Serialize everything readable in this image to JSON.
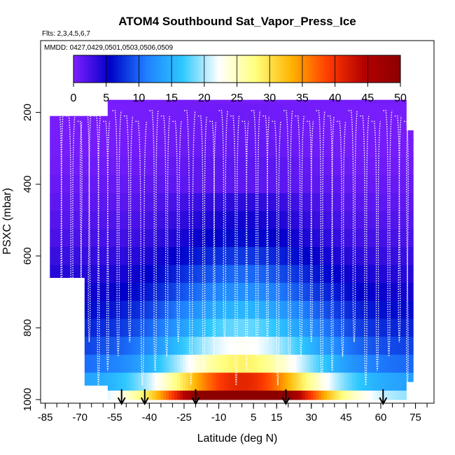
{
  "chart_data": {
    "type": "heatmap",
    "title": "ATOM4 Southbound Sat_Vapor_Press_Ice",
    "subtitle_flights": "Flts: 2,3,4,5,6,7",
    "subtitle_dates": "MMDD: 0427,0429,0501,0503,0506,0509",
    "xlabel": "Latitude (deg N)",
    "ylabel": "PSXC (mbar)",
    "xlim": [
      -87,
      83
    ],
    "ylim": [
      1010,
      0
    ],
    "x_ticks": [
      -85,
      -70,
      -55,
      -40,
      -25,
      -10,
      5,
      15,
      30,
      45,
      60,
      75
    ],
    "x_tick_labels": [
      "-85",
      "-70",
      "-55",
      "-40",
      "-25",
      "-10",
      "5",
      "15",
      "30",
      "45",
      "60",
      "75"
    ],
    "y_ticks": [
      200,
      400,
      600,
      800,
      1000
    ],
    "y_tick_labels": [
      "200",
      "400",
      "600",
      "800",
      "1000"
    ],
    "colorbar": {
      "min": 0,
      "max": 50,
      "ticks": [
        0,
        5,
        10,
        15,
        20,
        25,
        30,
        35,
        40,
        45,
        50
      ],
      "tick_labels": [
        "0",
        "5",
        "10",
        "15",
        "20",
        "25",
        "30",
        "35",
        "40",
        "45",
        "50"
      ],
      "palette": [
        "#7f1fff",
        "#0000c8",
        "#1f7fff",
        "#2dc8ff",
        "#ffffff",
        "#ffff7f",
        "#ffb400",
        "#ff3c00",
        "#b40000",
        "#8c0000"
      ]
    },
    "pressure_levels": [
      200,
      250,
      300,
      350,
      400,
      450,
      500,
      550,
      600,
      650,
      700,
      750,
      800,
      850,
      900,
      950,
      1000
    ],
    "profile_value_by_pressure": [
      0.5,
      0.6,
      0.8,
      1.2,
      1.8,
      2.5,
      3.3,
      4.2,
      5.5,
      7,
      8.5,
      10.5,
      12.5,
      15,
      18,
      24,
      34
    ],
    "latitude_bands": [
      {
        "lat_min": -83,
        "lat_max": -68,
        "p_top": 210,
        "p_bottom": 660
      },
      {
        "lat_min": -68,
        "lat_max": -58,
        "p_top": 210,
        "p_bottom": 960
      },
      {
        "lat_min": -58,
        "lat_max": 71,
        "p_top": 165,
        "p_bottom": 1000
      },
      {
        "lat_min": 71,
        "lat_max": 74,
        "p_top": 250,
        "p_bottom": 950
      }
    ],
    "warm_core": {
      "lat_center": 0,
      "lat_halfwidth": 35,
      "peak_value": 46
    },
    "profile_dive_latitudes": [
      -80,
      -76,
      -71,
      -68,
      -64,
      -60,
      -56,
      -51,
      -46,
      -40,
      -35,
      -30,
      -25,
      -19,
      -14,
      -10,
      -5,
      0,
      4,
      9,
      13,
      18,
      23,
      28,
      32,
      37,
      41,
      46,
      51,
      56,
      61,
      66,
      70
    ],
    "profile_min_pressure": 195,
    "arrow_latitudes": [
      -52,
      -42,
      -20,
      19,
      61
    ]
  }
}
